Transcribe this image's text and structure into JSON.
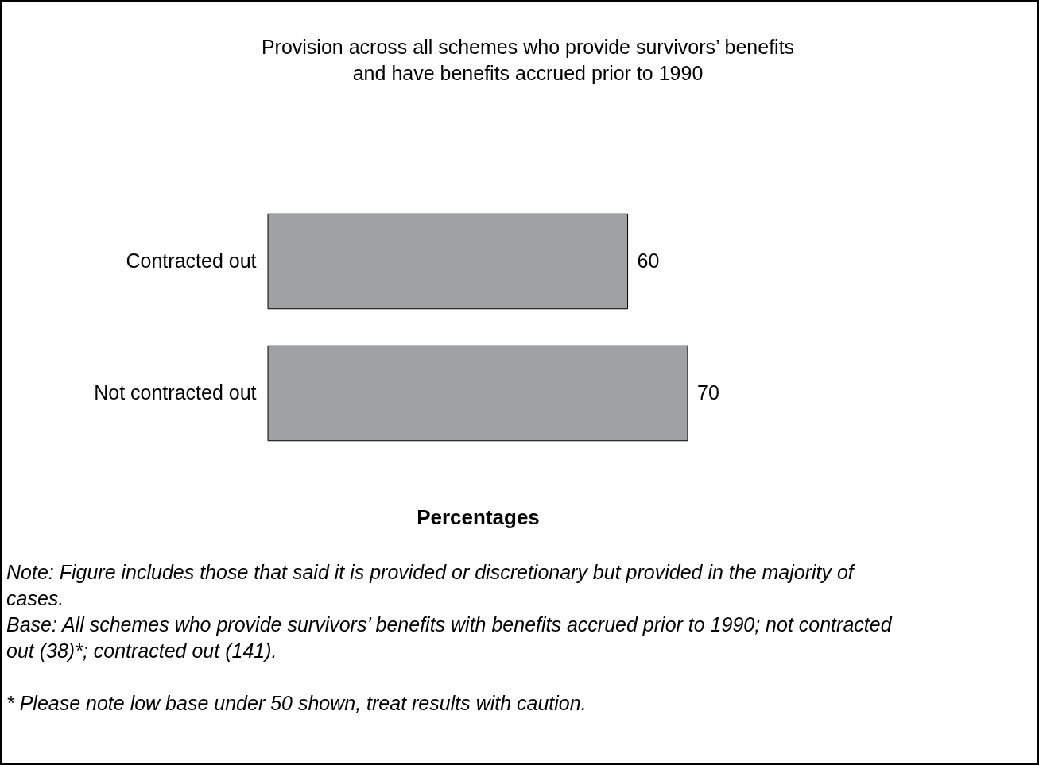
{
  "chart_data": {
    "type": "bar",
    "orientation": "horizontal",
    "title": "Provision across all schemes who provide survivors’ benefits\nand have benefits accrued prior to 1990",
    "xlabel": "Percentages",
    "categories": [
      "Contracted out",
      "Not contracted out"
    ],
    "values": [
      60,
      70
    ],
    "color": "#a0a1a3",
    "data_labels": true,
    "tick_labels": "y",
    "annotations": [
      "Note: Figure includes those that said it is provided or discretionary but provided in the majority of cases.",
      "Base: All schemes who provide survivors’ benefits with benefits accrued prior to 1990; not contracted out (38)*; contracted out (141).",
      "* Please note low base under 50 shown, treat results with caution."
    ]
  }
}
